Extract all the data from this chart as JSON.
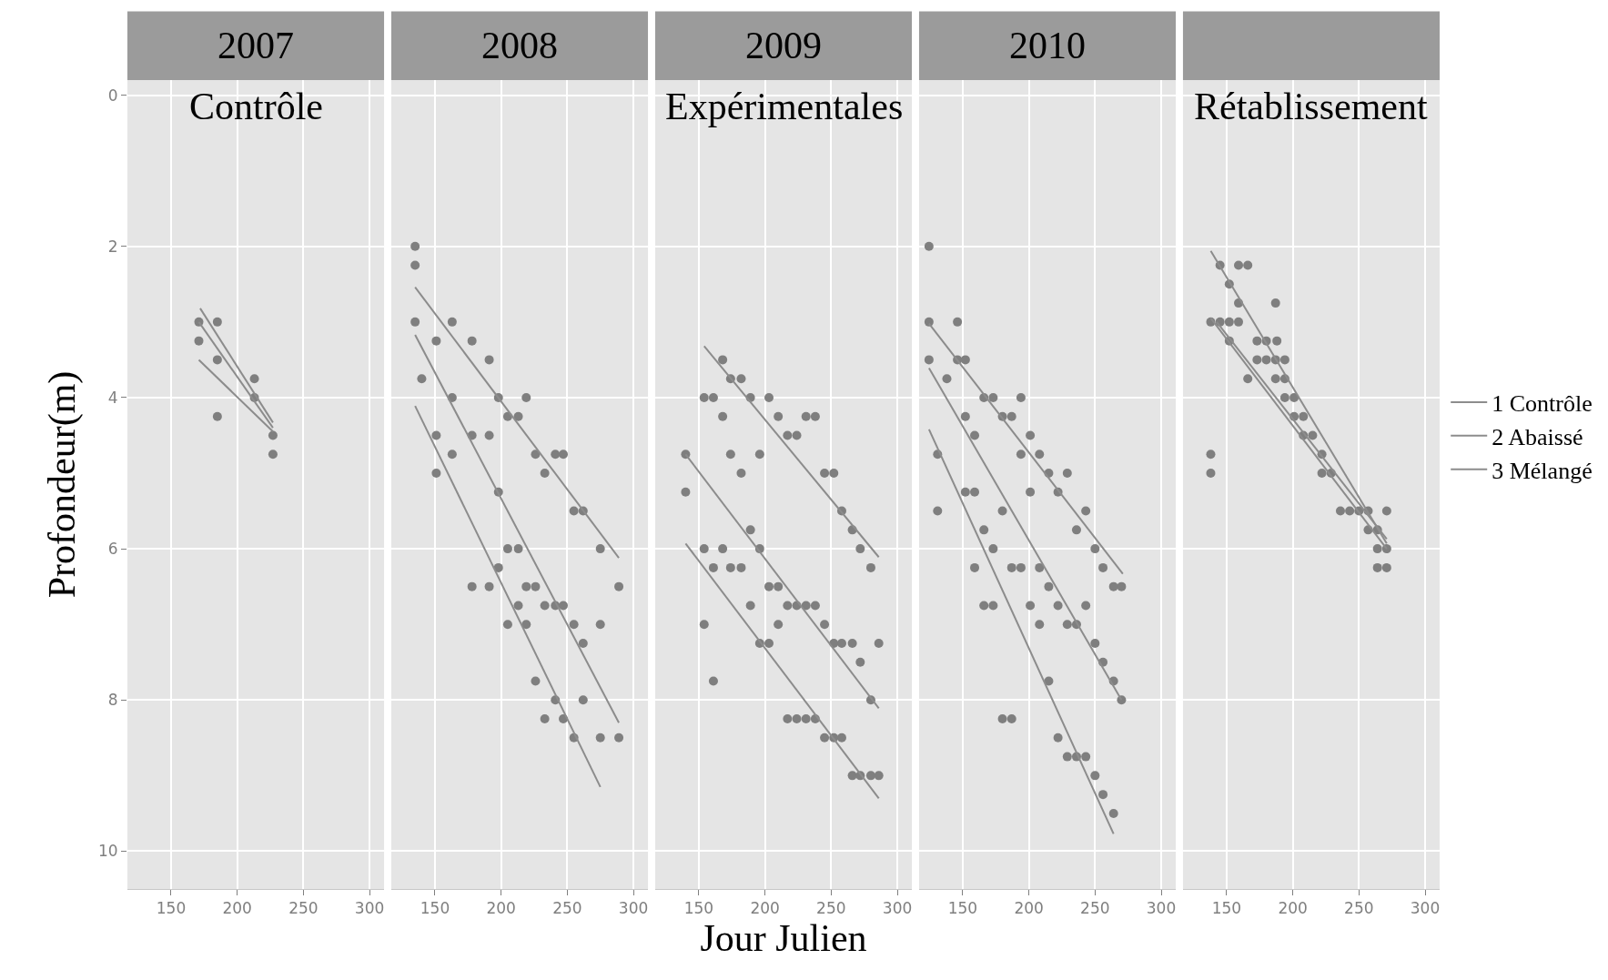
{
  "chart_data": [
    {
      "type": "scatter",
      "title": "2007",
      "ylabel": "Profondeur(m)",
      "annotations": [
        "Contrôle"
      ],
      "xlim": [
        117,
        311
      ],
      "ylim": [
        10.5,
        -0.2
      ],
      "xticks": [
        150,
        200,
        250,
        300
      ],
      "yticks": [
        0,
        2,
        4,
        6,
        8,
        10
      ],
      "grid": true,
      "series": [
        {
          "color": "#7f7f7f",
          "marker": "circle",
          "x": [
            171,
            171,
            185,
            185,
            213,
            213,
            185,
            227,
            227
          ],
          "values": [
            3,
            3.25,
            3,
            3.5,
            3.75,
            4,
            4.25,
            4.5,
            4.75
          ]
        },
        {
          "type": "line",
          "color": "#8c8c8c",
          "marker": "none",
          "x": [
            172,
            227
          ],
          "values": [
            2.82,
            4.33
          ]
        },
        {
          "type": "line",
          "color": "#8c8c8c",
          "marker": "none",
          "x": [
            171,
            227
          ],
          "values": [
            3.0,
            4.4
          ]
        },
        {
          "type": "line",
          "color": "#8c8c8c",
          "marker": "none",
          "x": [
            171,
            227
          ],
          "values": [
            3.5,
            4.45
          ]
        }
      ]
    },
    {
      "type": "scatter",
      "title": "2008",
      "xlim": [
        117,
        311
      ],
      "ylim": [
        10.5,
        -0.2
      ],
      "xticks": [
        150,
        200,
        250,
        300
      ],
      "yticks": [
        0,
        2,
        4,
        6,
        8,
        10
      ],
      "grid": true,
      "tick_labels": "x",
      "series": [
        {
          "color": "#7f7f7f",
          "marker": "circle",
          "x": [
            135,
            135,
            135,
            163,
            151,
            178,
            191,
            140,
            163,
            198,
            219,
            205,
            213,
            151,
            178,
            191,
            163,
            226,
            241,
            247,
            151,
            233,
            198,
            255,
            262,
            205,
            213,
            275,
            198,
            178,
            191,
            219,
            226,
            289,
            213,
            233,
            241,
            247,
            205,
            219,
            255,
            275,
            262,
            226,
            241,
            262,
            233,
            247,
            255,
            275,
            289
          ],
          "values": [
            2,
            2.25,
            3,
            3,
            3.25,
            3.25,
            3.5,
            3.75,
            4,
            4,
            4,
            4.25,
            4.25,
            4.5,
            4.5,
            4.5,
            4.75,
            4.75,
            4.75,
            4.75,
            5,
            5,
            5.25,
            5.5,
            5.5,
            6,
            6,
            6,
            6.25,
            6.5,
            6.5,
            6.5,
            6.5,
            6.5,
            6.75,
            6.75,
            6.75,
            6.75,
            7,
            7,
            7,
            7,
            7.25,
            7.75,
            8,
            8,
            8.25,
            8.25,
            8.5,
            8.5,
            8.5
          ]
        },
        {
          "type": "line",
          "color": "#8c8c8c",
          "marker": "none",
          "x": [
            135,
            289
          ],
          "values": [
            2.54,
            6.12
          ]
        },
        {
          "type": "line",
          "color": "#8c8c8c",
          "marker": "none",
          "x": [
            135,
            289
          ],
          "values": [
            3.17,
            8.3
          ]
        },
        {
          "type": "line",
          "color": "#8c8c8c",
          "marker": "none",
          "x": [
            135,
            275
          ],
          "values": [
            4.11,
            9.15
          ]
        }
      ]
    },
    {
      "type": "scatter",
      "title": "2009",
      "xlabel": "Jour Julien",
      "annotations": [
        "Expérimentales"
      ],
      "xlim": [
        117,
        311
      ],
      "ylim": [
        10.5,
        -0.2
      ],
      "xticks": [
        150,
        200,
        250,
        300
      ],
      "yticks": [
        0,
        2,
        4,
        6,
        8,
        10
      ],
      "grid": true,
      "tick_labels": "x",
      "series": [
        {
          "color": "#7f7f7f",
          "marker": "circle",
          "x": [
            168,
            174,
            182,
            154,
            161,
            189,
            203,
            168,
            210,
            231,
            238,
            217,
            224,
            140,
            174,
            196,
            182,
            245,
            252,
            140,
            258,
            266,
            189,
            154,
            168,
            196,
            272,
            161,
            174,
            182,
            280,
            203,
            210,
            189,
            217,
            224,
            231,
            238,
            154,
            210,
            245,
            196,
            203,
            252,
            258,
            266,
            286,
            272,
            161,
            280,
            217,
            224,
            231,
            238,
            245,
            252,
            258,
            266,
            272,
            280,
            286
          ],
          "values": [
            3.5,
            3.75,
            3.75,
            4,
            4,
            4,
            4,
            4.25,
            4.25,
            4.25,
            4.25,
            4.5,
            4.5,
            4.75,
            4.75,
            4.75,
            5,
            5,
            5,
            5.25,
            5.5,
            5.75,
            5.75,
            6,
            6,
            6,
            6,
            6.25,
            6.25,
            6.25,
            6.25,
            6.5,
            6.5,
            6.75,
            6.75,
            6.75,
            6.75,
            6.75,
            7,
            7,
            7,
            7.25,
            7.25,
            7.25,
            7.25,
            7.25,
            7.25,
            7.5,
            7.75,
            8,
            8.25,
            8.25,
            8.25,
            8.25,
            8.5,
            8.5,
            8.5,
            9,
            9,
            9,
            9
          ]
        },
        {
          "type": "line",
          "color": "#8c8c8c",
          "marker": "none",
          "x": [
            154,
            286
          ],
          "values": [
            3.32,
            6.11
          ]
        },
        {
          "type": "line",
          "color": "#8c8c8c",
          "marker": "none",
          "x": [
            140,
            286
          ],
          "values": [
            4.75,
            8.11
          ]
        },
        {
          "type": "line",
          "color": "#8c8c8c",
          "marker": "none",
          "x": [
            140,
            286
          ],
          "values": [
            5.93,
            9.3
          ]
        }
      ]
    },
    {
      "type": "scatter",
      "title": "2010",
      "xlim": [
        117,
        311
      ],
      "ylim": [
        10.5,
        -0.2
      ],
      "xticks": [
        150,
        200,
        250,
        300
      ],
      "yticks": [
        0,
        2,
        4,
        6,
        8,
        10
      ],
      "grid": true,
      "tick_labels": "x",
      "series": [
        {
          "color": "#7f7f7f",
          "marker": "circle",
          "x": [
            124.5,
            124.5,
            146,
            124.5,
            146,
            152,
            138,
            166,
            173,
            194,
            152,
            180,
            187,
            159,
            201,
            131,
            194,
            208,
            215,
            229,
            152,
            159,
            201,
            222,
            131,
            180,
            243,
            166,
            236,
            173,
            250,
            159,
            187,
            194,
            208,
            256,
            215,
            264,
            270,
            166,
            173,
            201,
            222,
            243,
            208,
            229,
            236,
            250,
            256,
            264,
            215,
            270,
            180,
            187,
            222,
            229,
            236,
            243,
            250,
            256,
            264
          ],
          "values": [
            2,
            3,
            3,
            3.5,
            3.5,
            3.5,
            3.75,
            4,
            4,
            4,
            4.25,
            4.25,
            4.25,
            4.5,
            4.5,
            4.75,
            4.75,
            4.75,
            5,
            5,
            5.25,
            5.25,
            5.25,
            5.25,
            5.5,
            5.5,
            5.5,
            5.75,
            5.75,
            6,
            6,
            6.25,
            6.25,
            6.25,
            6.25,
            6.25,
            6.5,
            6.5,
            6.5,
            6.75,
            6.75,
            6.75,
            6.75,
            6.75,
            7,
            7,
            7,
            7.25,
            7.5,
            7.75,
            7.75,
            8,
            8.25,
            8.25,
            8.5,
            8.75,
            8.75,
            8.75,
            9,
            9.25,
            9.5
          ]
        },
        {
          "type": "line",
          "color": "#8c8c8c",
          "marker": "none",
          "x": [
            124.5,
            271
          ],
          "values": [
            3.02,
            6.33
          ]
        },
        {
          "type": "line",
          "color": "#8c8c8c",
          "marker": "none",
          "x": [
            124.5,
            270
          ],
          "values": [
            3.61,
            8.0
          ]
        },
        {
          "type": "line",
          "color": "#8c8c8c",
          "marker": "none",
          "x": [
            124.5,
            264
          ],
          "values": [
            4.42,
            9.77
          ]
        }
      ]
    },
    {
      "type": "scatter",
      "annotations": [
        "Rétablissement"
      ],
      "xlim": [
        117,
        311
      ],
      "ylim": [
        10.5,
        -0.2
      ],
      "xticks": [
        150,
        200,
        250,
        300
      ],
      "yticks": [
        0,
        2,
        4,
        6,
        8,
        10
      ],
      "grid": true,
      "tick_labels": "x",
      "legend": "right",
      "series": [
        {
          "color": "#7f7f7f",
          "marker": "circle",
          "x": [
            145,
            159,
            166,
            152,
            159,
            187,
            138,
            145,
            152,
            159,
            152,
            173,
            180,
            188,
            173,
            180,
            187,
            194,
            166,
            187,
            194,
            194,
            201,
            201,
            208,
            208,
            215,
            222,
            138,
            138,
            222,
            229,
            236,
            243,
            250,
            257,
            271,
            257,
            264,
            264,
            271,
            264,
            271
          ],
          "values": [
            2.25,
            2.25,
            2.25,
            2.5,
            2.75,
            2.75,
            3,
            3,
            3,
            3,
            3.25,
            3.25,
            3.25,
            3.25,
            3.5,
            3.5,
            3.5,
            3.5,
            3.75,
            3.75,
            3.75,
            4,
            4,
            4.25,
            4.25,
            4.5,
            4.5,
            4.75,
            4.75,
            5,
            5,
            5,
            5.5,
            5.5,
            5.5,
            5.5,
            5.5,
            5.75,
            5.75,
            6,
            6,
            6.25,
            6.25
          ]
        },
        {
          "type": "line",
          "name": "1 Contrôle",
          "color": "#8c8c8c",
          "marker": "none",
          "x": [
            138,
            271
          ],
          "values": [
            2.06,
            5.93
          ]
        },
        {
          "type": "line",
          "name": "2 Abaissé",
          "color": "#8c8c8c",
          "marker": "none",
          "x": [
            138,
            271
          ],
          "values": [
            2.95,
            6.0
          ]
        },
        {
          "type": "line",
          "name": "3 Mélangé",
          "color": "#8c8c8c",
          "marker": "none",
          "x": [
            142.5,
            271
          ],
          "values": [
            3.0,
            5.87
          ]
        }
      ]
    }
  ]
}
